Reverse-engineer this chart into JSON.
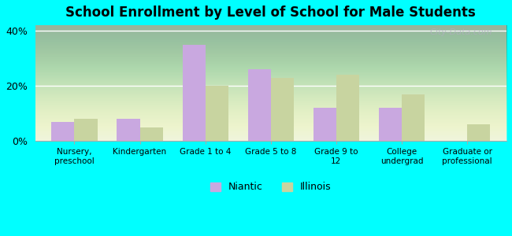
{
  "title": "School Enrollment by Level of School for Male Students",
  "categories": [
    "Nursery,\npreschool",
    "Kindergarten",
    "Grade 1 to 4",
    "Grade 5 to 8",
    "Grade 9 to\n12",
    "College\nundergrad",
    "Graduate or\nprofessional"
  ],
  "niantic_values": [
    7,
    8,
    35,
    26,
    12,
    12,
    0
  ],
  "illinois_values": [
    8,
    5,
    20,
    23,
    24,
    17,
    6
  ],
  "niantic_color": "#c9a8e0",
  "illinois_color": "#c8d4a0",
  "background_color": "#00FFFF",
  "ylim": [
    0,
    42
  ],
  "yticks": [
    0,
    20,
    40
  ],
  "ytick_labels": [
    "0%",
    "20%",
    "40%"
  ],
  "legend_labels": [
    "Niantic",
    "Illinois"
  ],
  "watermark": "City-Data.com"
}
